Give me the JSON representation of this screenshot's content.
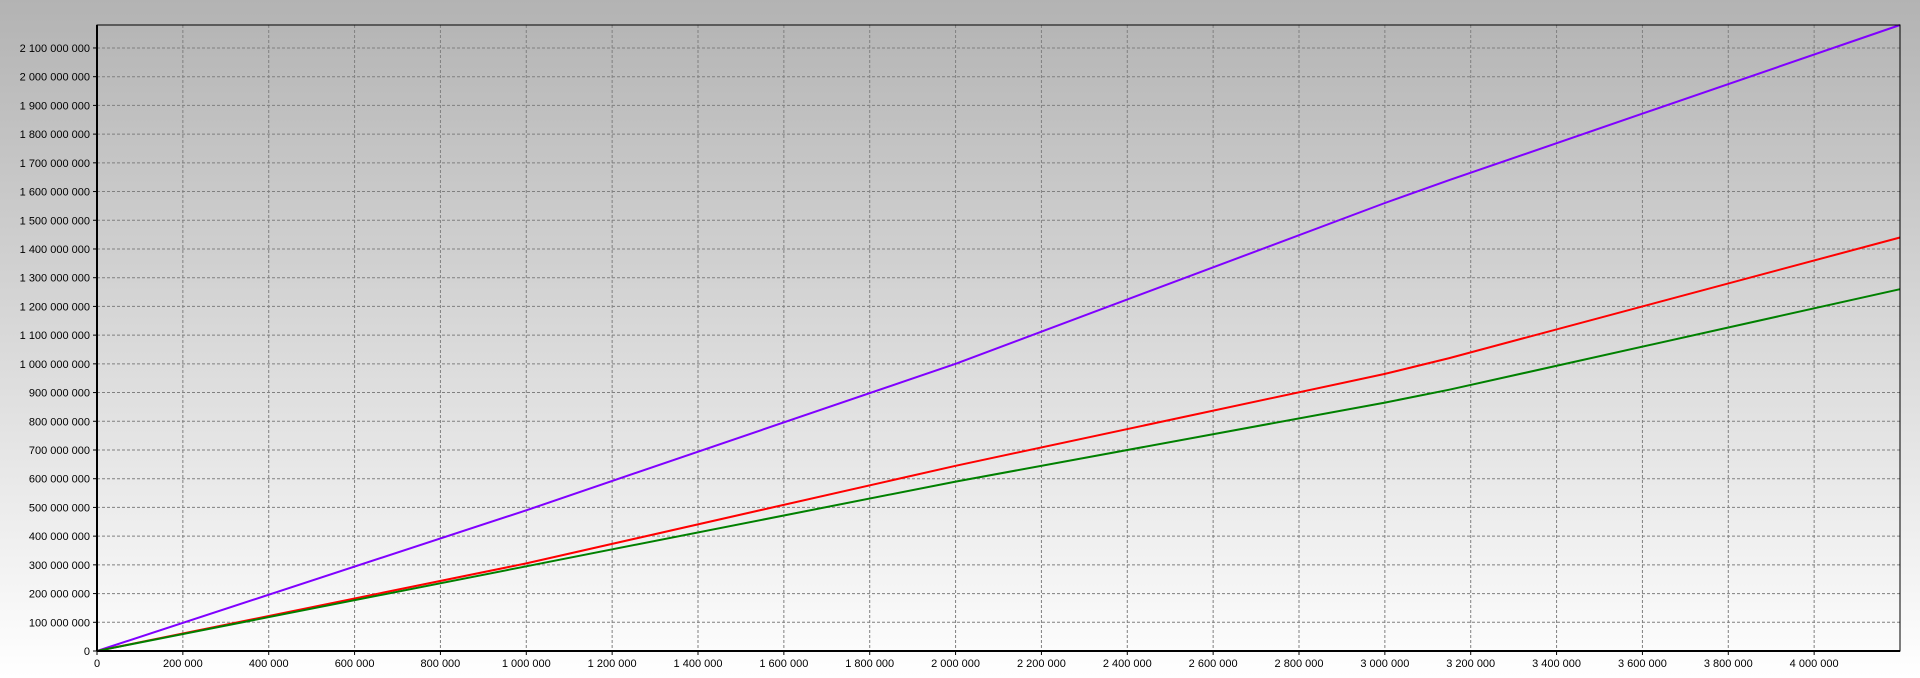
{
  "colors": {
    "background_top": "#b3b3b3",
    "background_bottom": "#ffffff",
    "grid": "#808080",
    "axis": "#000000"
  },
  "chart_data": {
    "type": "line",
    "title": "",
    "xlabel": "",
    "ylabel": "",
    "grid": true,
    "legend": "none",
    "xlim": [
      0,
      4200000
    ],
    "ylim": [
      0,
      2180000000
    ],
    "x_ticks": [
      0,
      200000,
      400000,
      600000,
      800000,
      1000000,
      1200000,
      1400000,
      1600000,
      1800000,
      2000000,
      2200000,
      2400000,
      2600000,
      2800000,
      3000000,
      3200000,
      3400000,
      3600000,
      3800000,
      4000000
    ],
    "x_tick_labels": [
      "0",
      "200 000",
      "400 000",
      "600 000",
      "800 000",
      "1 000 000",
      "1 200 000",
      "1 400 000",
      "1 600 000",
      "1 800 000",
      "2 000 000",
      "2 200 000",
      "2 400 000",
      "2 600 000",
      "2 800 000",
      "3 000 000",
      "3 200 000",
      "3 400 000",
      "3 600 000",
      "3 800 000",
      "4 000 000"
    ],
    "y_ticks": [
      0,
      100000000,
      200000000,
      300000000,
      400000000,
      500000000,
      600000000,
      700000000,
      800000000,
      900000000,
      1000000000,
      1100000000,
      1200000000,
      1300000000,
      1400000000,
      1500000000,
      1600000000,
      1700000000,
      1800000000,
      1900000000,
      2000000000,
      2100000000
    ],
    "y_tick_labels": [
      "0",
      "100 000 000",
      "200 000 000",
      "300 000 000",
      "400 000 000",
      "500 000 000",
      "600 000 000",
      "700 000 000",
      "800 000 000",
      "900 000 000",
      "1 000 000 000",
      "1 100 000 000",
      "1 200 000 000",
      "1 300 000 000",
      "1 400 000 000",
      "1 500 000 000",
      "1 600 000 000",
      "1 700 000 000",
      "1 800 000 000",
      "1 900 000 000",
      "2 000 000 000",
      "2 100 000 000"
    ],
    "series": [
      {
        "color": "#8000ff",
        "points": [
          [
            0,
            0
          ],
          [
            1000000,
            490000000
          ],
          [
            2000000,
            1000000000
          ],
          [
            3000000,
            1560000000
          ],
          [
            3150000,
            1640000000
          ],
          [
            4200000,
            2180000000
          ]
        ]
      },
      {
        "color": "#ff0000",
        "points": [
          [
            0,
            0
          ],
          [
            1000000,
            305000000
          ],
          [
            2000000,
            645000000
          ],
          [
            3000000,
            965000000
          ],
          [
            3150000,
            1020000000
          ],
          [
            4200000,
            1440000000
          ]
        ]
      },
      {
        "color": "#008000",
        "points": [
          [
            0,
            0
          ],
          [
            1000000,
            295000000
          ],
          [
            2000000,
            590000000
          ],
          [
            3000000,
            865000000
          ],
          [
            3150000,
            910000000
          ],
          [
            4200000,
            1260000000
          ]
        ]
      }
    ]
  }
}
